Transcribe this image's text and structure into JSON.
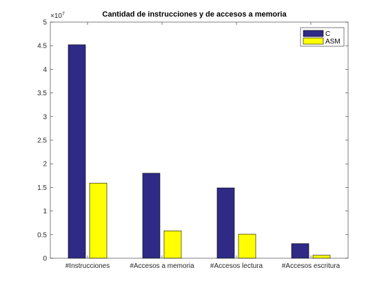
{
  "chart_data": {
    "type": "bar",
    "title": "Cantidad de instrucciones y de accesos a memoria",
    "categories": [
      "#Instrucciones",
      "#Accesos a memoria",
      "#Accesos lectura",
      "#Accesos escritura"
    ],
    "series": [
      {
        "name": "C",
        "values": [
          45200000,
          18000000,
          14900000,
          3100000
        ],
        "color": "#2e2a85"
      },
      {
        "name": "ASM",
        "values": [
          15900000,
          5800000,
          5100000,
          650000
        ],
        "color": "#ffff00"
      }
    ],
    "xlabel": "",
    "ylabel": "",
    "ylim": [
      0,
      50000000
    ],
    "yticks": [
      "0",
      "0.5",
      "1",
      "1.5",
      "2",
      "2.5",
      "3",
      "3.5",
      "4",
      "4.5",
      "5"
    ],
    "y_exponent_base": "×10",
    "y_exponent_power": "7",
    "legend_position": "top-right",
    "grid": false
  }
}
